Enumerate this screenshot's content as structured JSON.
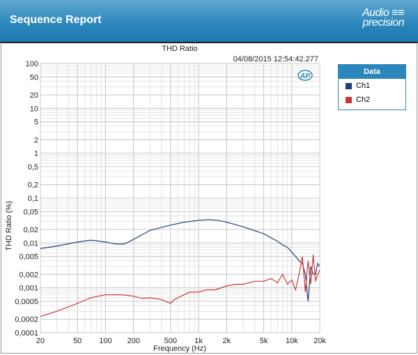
{
  "header": {
    "title": "Sequence Report",
    "logo": "Audio precision"
  },
  "timestamp": "04/08/2015 12:54:42.277",
  "legend": {
    "title": "Data",
    "items": [
      {
        "label": "Ch1",
        "color": "#1f3f7a"
      },
      {
        "label": "Ch2",
        "color": "#cc3333"
      }
    ]
  },
  "chart_data": {
    "type": "line",
    "title": "THD Ratio",
    "xlabel": "Frequency (Hz)",
    "ylabel": "THD Ratio (%)",
    "xscale": "log",
    "yscale": "log",
    "xlim": [
      20,
      20000
    ],
    "ylim": [
      0.0001,
      100
    ],
    "grid": true,
    "legend": "right-outside",
    "xticks": [
      {
        "v": 20,
        "l": "20"
      },
      {
        "v": 50,
        "l": "50"
      },
      {
        "v": 100,
        "l": "100"
      },
      {
        "v": 200,
        "l": "200"
      },
      {
        "v": 500,
        "l": "500"
      },
      {
        "v": 1000,
        "l": "1k"
      },
      {
        "v": 2000,
        "l": "2k"
      },
      {
        "v": 5000,
        "l": "5k"
      },
      {
        "v": 10000,
        "l": "10k"
      },
      {
        "v": 20000,
        "l": "20k"
      }
    ],
    "yticks": [
      {
        "v": 100,
        "l": "100"
      },
      {
        "v": 50,
        "l": "50"
      },
      {
        "v": 20,
        "l": "20"
      },
      {
        "v": 10,
        "l": "10"
      },
      {
        "v": 5,
        "l": "5"
      },
      {
        "v": 2,
        "l": "2"
      },
      {
        "v": 1,
        "l": "1"
      },
      {
        "v": 0.5,
        "l": "0,5"
      },
      {
        "v": 0.2,
        "l": "0,2"
      },
      {
        "v": 0.1,
        "l": "0,1"
      },
      {
        "v": 0.05,
        "l": "0,05"
      },
      {
        "v": 0.02,
        "l": "0,02"
      },
      {
        "v": 0.01,
        "l": "0,01"
      },
      {
        "v": 0.005,
        "l": "0,005"
      },
      {
        "v": 0.002,
        "l": "0,002"
      },
      {
        "v": 0.001,
        "l": "0,001"
      },
      {
        "v": 0.0005,
        "l": "0,0005"
      },
      {
        "v": 0.0002,
        "l": "0,0002"
      },
      {
        "v": 0.0001,
        "l": "0,0001"
      }
    ],
    "series": [
      {
        "name": "Ch1",
        "color": "#1f3f7a",
        "x": [
          20,
          30,
          50,
          70,
          100,
          130,
          160,
          200,
          300,
          500,
          700,
          1000,
          1300,
          1600,
          2000,
          3000,
          5000,
          7000,
          8000,
          9000,
          10000,
          11000,
          12000,
          13000,
          14000,
          15000,
          16000,
          17000,
          18000,
          19000,
          20000
        ],
        "y": [
          0.0075,
          0.0085,
          0.0105,
          0.0115,
          0.0105,
          0.0095,
          0.0095,
          0.012,
          0.019,
          0.025,
          0.029,
          0.032,
          0.033,
          0.032,
          0.029,
          0.023,
          0.016,
          0.011,
          0.009,
          0.008,
          0.0062,
          0.005,
          0.004,
          0.0035,
          0.002,
          0.0005,
          0.003,
          0.002,
          0.002,
          0.0035,
          0.003
        ]
      },
      {
        "name": "Ch2",
        "color": "#cc3333",
        "x": [
          20,
          30,
          50,
          70,
          100,
          150,
          200,
          250,
          300,
          400,
          500,
          550,
          700,
          800,
          1000,
          1200,
          1500,
          2000,
          2500,
          3000,
          4000,
          5000,
          6000,
          7000,
          8000,
          9000,
          10000,
          11000,
          12000,
          13000,
          14000,
          15000,
          16000,
          17000,
          18000,
          19000,
          20000
        ],
        "y": [
          0.00023,
          0.0003,
          0.00045,
          0.0006,
          0.0007,
          0.0007,
          0.00065,
          0.00058,
          0.0006,
          0.00055,
          0.00045,
          0.00055,
          0.0007,
          0.0008,
          0.0008,
          0.0009,
          0.0009,
          0.0011,
          0.0012,
          0.0012,
          0.0014,
          0.0014,
          0.0016,
          0.0013,
          0.002,
          0.0012,
          0.0015,
          0.0009,
          0.002,
          0.005,
          0.0008,
          0.004,
          0.0012,
          0.0055,
          0.0014,
          0.002,
          0.0025
        ]
      }
    ]
  }
}
